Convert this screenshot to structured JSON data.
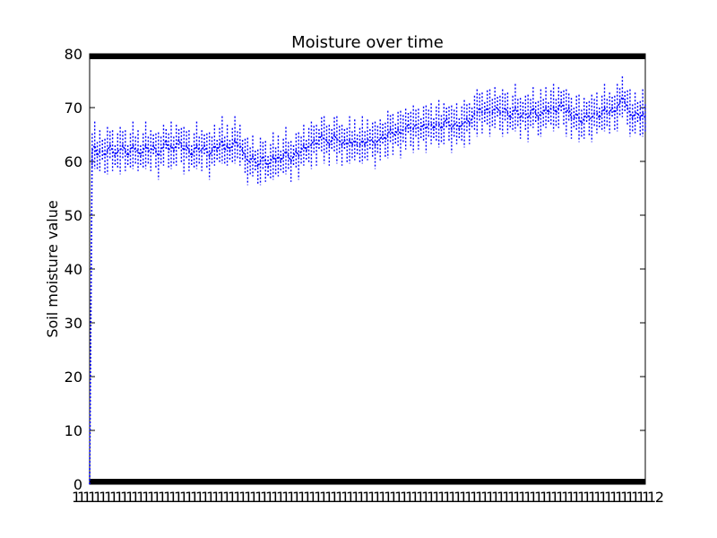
{
  "chart_data": {
    "type": "line",
    "title": "Moisture over time",
    "xlabel": "",
    "ylabel": "Soil moisture value",
    "ylim": [
      0,
      80
    ],
    "yticks": [
      0,
      10,
      20,
      30,
      40,
      50,
      60,
      70,
      80
    ],
    "grid": false,
    "legend": "none",
    "line_style": "dotted",
    "line_color": "#0000ff",
    "x_tick_labels_note": "overlapping illegible tick labels along x-axis",
    "x_end_label": "2",
    "series": [
      {
        "values": [
          0,
          62,
          63,
          61,
          62,
          62,
          61,
          62,
          63,
          62,
          61,
          62,
          62,
          63,
          62,
          61,
          62,
          63,
          62,
          62,
          61,
          62,
          63,
          62,
          62,
          63,
          62,
          61,
          62,
          63,
          64,
          62,
          63,
          62,
          63,
          64,
          63,
          62,
          63,
          62,
          61,
          62,
          63,
          62,
          62,
          63,
          62,
          61,
          62,
          63,
          62,
          63,
          64,
          62,
          63,
          62,
          63,
          64,
          63,
          63,
          62,
          61,
          60,
          60,
          61,
          60,
          59,
          60,
          61,
          60,
          59,
          60,
          61,
          60,
          61,
          60,
          61,
          62,
          61,
          60,
          61,
          62,
          61,
          62,
          63,
          62,
          63,
          63,
          64,
          63,
          64,
          65,
          64,
          64,
          63,
          64,
          65,
          64,
          64,
          63,
          64,
          63,
          64,
          63,
          64,
          63,
          63,
          64,
          63,
          64,
          64,
          64,
          63,
          64,
          64,
          65,
          64,
          65,
          66,
          65,
          65,
          66,
          65,
          66,
          66,
          67,
          66,
          66,
          67,
          66,
          66,
          67,
          66,
          67,
          67,
          66,
          67,
          67,
          66,
          67,
          68,
          67,
          66,
          67,
          67,
          66,
          67,
          67,
          68,
          67,
          68,
          69,
          69,
          70,
          69,
          69,
          70,
          69,
          69,
          70,
          70,
          69,
          69,
          70,
          69,
          68,
          69,
          70,
          69,
          68,
          69,
          69,
          68,
          69,
          70,
          69,
          68,
          69,
          69,
          70,
          69,
          70,
          70,
          69,
          70,
          71,
          70,
          69,
          70,
          68,
          68,
          69,
          68,
          67,
          68,
          69,
          68,
          68,
          69,
          69,
          68,
          69,
          70,
          69,
          69,
          70,
          69,
          70,
          71,
          72,
          71,
          70,
          69,
          68,
          69,
          69,
          68,
          69,
          68
        ]
      }
    ]
  }
}
